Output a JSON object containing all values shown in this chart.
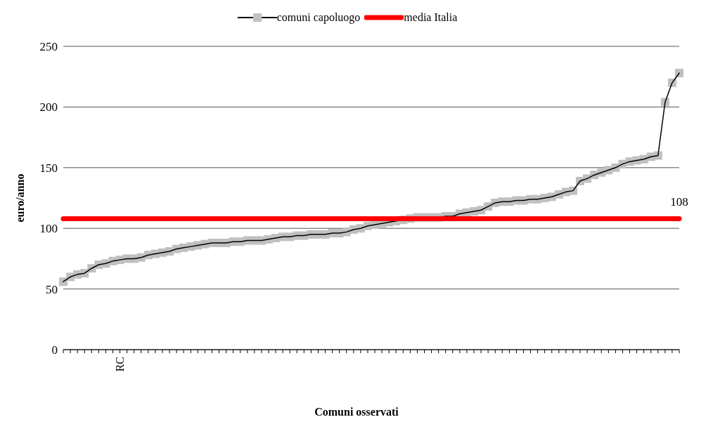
{
  "chart_data": {
    "type": "line",
    "xlabel": "Comuni osservati",
    "ylabel": "euro/anno",
    "categories": [
      null,
      null,
      null,
      null,
      null,
      null,
      null,
      null,
      "RC",
      null,
      null,
      null,
      null,
      null,
      null,
      null,
      null,
      null,
      null,
      null,
      null,
      null,
      null,
      null,
      null,
      null,
      null,
      null,
      null,
      null,
      null,
      null,
      null,
      null,
      null,
      null,
      null,
      null,
      null,
      null,
      null,
      null,
      null,
      null,
      null,
      null,
      null,
      null,
      null,
      null,
      null,
      null,
      null,
      null,
      null,
      null,
      null,
      null,
      null,
      null,
      null,
      null,
      null,
      null,
      null,
      null,
      null,
      null,
      null,
      null,
      null,
      null,
      null,
      null,
      null,
      null,
      null,
      null,
      null,
      null,
      null,
      null,
      null,
      null,
      null,
      null,
      null,
      null
    ],
    "series": [
      {
        "name": "comuni capoluogo",
        "color": "#c0c0c0",
        "marker": "square",
        "values": [
          56,
          60,
          62,
          63,
          67,
          70,
          71,
          73,
          74,
          75,
          75,
          76,
          78,
          79,
          80,
          81,
          83,
          84,
          85,
          86,
          87,
          88,
          88,
          88,
          89,
          89,
          90,
          90,
          90,
          91,
          92,
          93,
          93,
          94,
          94,
          95,
          95,
          95,
          96,
          96,
          97,
          99,
          100,
          102,
          103,
          104,
          105,
          106,
          107,
          108,
          109,
          109,
          109,
          109,
          110,
          110,
          112,
          113,
          114,
          115,
          118,
          121,
          122,
          122,
          123,
          123,
          124,
          124,
          125,
          126,
          128,
          130,
          131,
          139,
          141,
          144,
          146,
          148,
          150,
          153,
          155,
          156,
          157,
          159,
          160,
          204,
          220,
          228
        ]
      },
      {
        "name": "media Italia",
        "color": "#ff0000",
        "marker": "none",
        "values": [
          108,
          108,
          108,
          108,
          108,
          108,
          108,
          108,
          108,
          108,
          108,
          108,
          108,
          108,
          108,
          108,
          108,
          108,
          108,
          108,
          108,
          108,
          108,
          108,
          108,
          108,
          108,
          108,
          108,
          108,
          108,
          108,
          108,
          108,
          108,
          108,
          108,
          108,
          108,
          108,
          108,
          108,
          108,
          108,
          108,
          108,
          108,
          108,
          108,
          108,
          108,
          108,
          108,
          108,
          108,
          108,
          108,
          108,
          108,
          108,
          108,
          108,
          108,
          108,
          108,
          108,
          108,
          108,
          108,
          108,
          108,
          108,
          108,
          108,
          108,
          108,
          108,
          108,
          108,
          108,
          108,
          108,
          108,
          108,
          108,
          108,
          108,
          108
        ],
        "value_labels": [
          null,
          null,
          null,
          null,
          null,
          null,
          null,
          null,
          null,
          null,
          null,
          null,
          null,
          null,
          null,
          null,
          null,
          null,
          null,
          null,
          null,
          null,
          null,
          null,
          null,
          null,
          null,
          null,
          null,
          null,
          null,
          null,
          null,
          null,
          null,
          null,
          null,
          null,
          null,
          null,
          null,
          null,
          null,
          null,
          null,
          null,
          null,
          null,
          null,
          null,
          null,
          null,
          null,
          null,
          null,
          null,
          null,
          null,
          null,
          null,
          null,
          null,
          null,
          null,
          null,
          null,
          null,
          null,
          null,
          null,
          null,
          null,
          null,
          null,
          null,
          null,
          null,
          null,
          null,
          null,
          null,
          null,
          null,
          null,
          null,
          null,
          null,
          "108"
        ]
      }
    ],
    "ylim": [
      0,
      250
    ],
    "yticks": [
      0,
      50,
      100,
      150,
      200,
      250
    ],
    "grid": "y",
    "legend": "top"
  }
}
